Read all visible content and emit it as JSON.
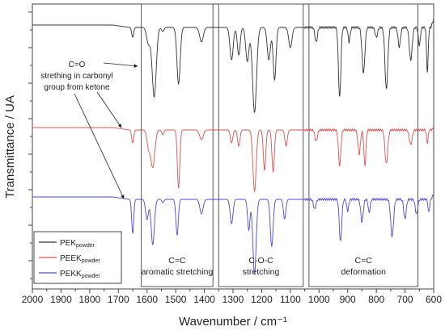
{
  "chart_data": {
    "type": "line",
    "title": "",
    "xlabel": "Wavenumber / cm⁻¹",
    "ylabel": "Transmittance / UA",
    "xlim": [
      2000,
      600
    ],
    "x_reversed": true,
    "x_ticks": [
      2000,
      1900,
      1800,
      1700,
      1600,
      1500,
      1400,
      1300,
      1200,
      1100,
      1000,
      900,
      800,
      700,
      600
    ],
    "y_tick_labels_shown": false,
    "grid": false,
    "legend": {
      "placement": "bottom-left",
      "entries": [
        {
          "base": "PEK",
          "sub": "powder",
          "color": "#333333"
        },
        {
          "base": "PEEK",
          "sub": "powder",
          "color": "#e05050"
        },
        {
          "base": "PEKK",
          "sub": "powder",
          "color": "#4a4ad8"
        }
      ]
    },
    "regions": [
      {
        "x_start": 1620,
        "x_end": 1370,
        "label_lines": [
          "C=C",
          "aromatic stretching"
        ]
      },
      {
        "x_start": 1350,
        "x_end": 1055,
        "label_lines": [
          "C-O-C",
          "stretching"
        ]
      },
      {
        "x_start": 1035,
        "x_end": 655,
        "label_lines": [
          "C=C",
          "deformation"
        ]
      }
    ],
    "annotation": {
      "lines": [
        "C=O",
        "strething in carbonyl",
        "group from ketone"
      ],
      "arrow_targets_x": [
        1650,
        1655,
        1650
      ]
    },
    "series": [
      {
        "name": "PEK powder",
        "color": "#333333",
        "baseline": 0.5,
        "tail": 0.6,
        "tail_end": 0.5,
        "peaks": [
          [
            1650,
            5,
            12
          ],
          [
            1595,
            9,
            20
          ],
          [
            1575,
            10,
            86
          ],
          [
            1545,
            6,
            5
          ],
          [
            1490,
            8,
            70
          ],
          [
            1410,
            9,
            18
          ],
          [
            1305,
            8,
            40
          ],
          [
            1280,
            7,
            34
          ],
          [
            1250,
            8,
            42
          ],
          [
            1225,
            10,
            105
          ],
          [
            1175,
            8,
            40
          ],
          [
            1155,
            7,
            65
          ],
          [
            1100,
            8,
            25
          ],
          [
            1010,
            6,
            18
          ],
          [
            928,
            6,
            86
          ],
          [
            895,
            5,
            18
          ],
          [
            845,
            7,
            56
          ],
          [
            800,
            6,
            12
          ],
          [
            765,
            7,
            76
          ],
          [
            720,
            6,
            24
          ],
          [
            680,
            7,
            40
          ],
          [
            650,
            5,
            22
          ],
          [
            622,
            4,
            55
          ]
        ]
      },
      {
        "name": "PEEK powder",
        "color": "#e05050",
        "baseline": 0.5,
        "tail": 0.7,
        "tail_end": 0.1,
        "peaks": [
          [
            1650,
            5,
            16
          ],
          [
            1595,
            8,
            20
          ],
          [
            1580,
            10,
            46
          ],
          [
            1545,
            5,
            6
          ],
          [
            1490,
            6,
            72
          ],
          [
            1410,
            9,
            12
          ],
          [
            1305,
            6,
            16
          ],
          [
            1280,
            6,
            20
          ],
          [
            1225,
            8,
            76
          ],
          [
            1190,
            6,
            50
          ],
          [
            1160,
            6,
            52
          ],
          [
            1115,
            6,
            20
          ],
          [
            1010,
            6,
            14
          ],
          [
            928,
            6,
            44
          ],
          [
            860,
            6,
            30
          ],
          [
            840,
            5,
            44
          ],
          [
            765,
            7,
            42
          ],
          [
            680,
            7,
            18
          ],
          [
            622,
            4,
            16
          ]
        ]
      },
      {
        "name": "PEKK powder",
        "color": "#4a4ad8",
        "baseline": 0.5,
        "tail": 0.65,
        "tail_end": 0.3,
        "peaks": [
          [
            1650,
            5,
            42
          ],
          [
            1600,
            7,
            25
          ],
          [
            1580,
            8,
            56
          ],
          [
            1545,
            5,
            4
          ],
          [
            1495,
            6,
            44
          ],
          [
            1410,
            8,
            18
          ],
          [
            1305,
            7,
            30
          ],
          [
            1245,
            6,
            38
          ],
          [
            1225,
            8,
            92
          ],
          [
            1165,
            7,
            58
          ],
          [
            1120,
            6,
            24
          ],
          [
            1015,
            6,
            12
          ],
          [
            925,
            6,
            52
          ],
          [
            900,
            5,
            14
          ],
          [
            850,
            6,
            28
          ],
          [
            825,
            5,
            16
          ],
          [
            745,
            7,
            46
          ],
          [
            700,
            6,
            24
          ],
          [
            660,
            6,
            18
          ],
          [
            617,
            4,
            16
          ]
        ]
      }
    ]
  }
}
